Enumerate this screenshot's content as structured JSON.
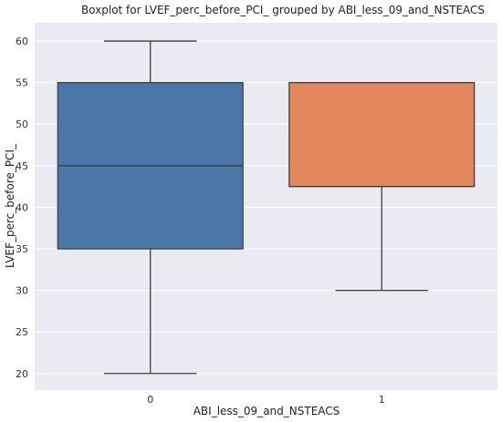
{
  "chart_data": {
    "type": "boxplot",
    "title": "Boxplot for LVEF_perc_before_PCI_ grouped by ABI_less_09_and_NSTEACS",
    "xlabel": "ABI_less_09_and_NSTEACS",
    "ylabel": "LVEF_perc_before_PCI_",
    "categories": [
      "0",
      "1"
    ],
    "ylim": [
      18.0,
      62.2
    ],
    "yticks": [
      20,
      25,
      30,
      35,
      40,
      45,
      50,
      55,
      60
    ],
    "grid": true,
    "legend": "none",
    "boxes": [
      {
        "category": "0",
        "whisker_low": 20,
        "q1": 35,
        "median": 45,
        "q3": 55,
        "whisker_high": 60,
        "color": "#4a76a8"
      },
      {
        "category": "1",
        "whisker_low": 30,
        "q1": 42.5,
        "median": 42.5,
        "q3": 55,
        "whisker_high": 55,
        "color": "#e2875e"
      }
    ]
  },
  "colors": {
    "plot_background": "#eaeaf2",
    "grid": "#ffffff",
    "lines": "#3f3f3f"
  }
}
